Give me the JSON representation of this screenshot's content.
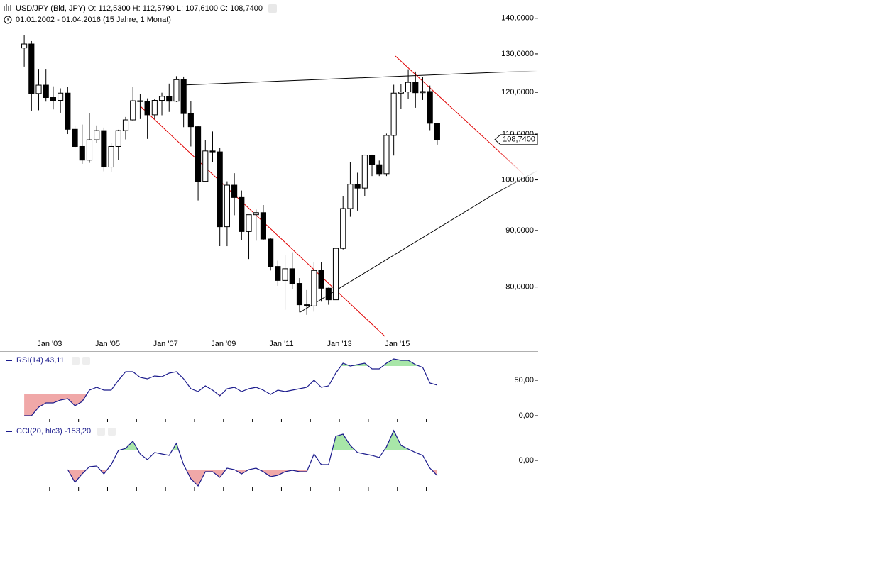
{
  "header": {
    "title": "USD/JPY (Bid, JPY)  O: 112,5300  H: 112,5790  L: 107,6100  C: 108,7400",
    "subtitle": "01.01.2002 - 01.04.2016 (15 Jahre, 1 Monat)"
  },
  "chart_data": [
    {
      "type": "candlestick",
      "log": true,
      "x": [
        "2002-01",
        "2002-04",
        "2002-07",
        "2002-10",
        "2003-01",
        "2003-04",
        "2003-07",
        "2003-10",
        "2004-01",
        "2004-04",
        "2004-07",
        "2004-10",
        "2005-01",
        "2005-04",
        "2005-07",
        "2005-10",
        "2006-01",
        "2006-04",
        "2006-07",
        "2006-10",
        "2007-01",
        "2007-04",
        "2007-07",
        "2007-10",
        "2008-01",
        "2008-04",
        "2008-07",
        "2008-10",
        "2009-01",
        "2009-04",
        "2009-07",
        "2009-10",
        "2010-01",
        "2010-04",
        "2010-07",
        "2010-10",
        "2011-01",
        "2011-04",
        "2011-07",
        "2011-10",
        "2012-01",
        "2012-04",
        "2012-07",
        "2012-10",
        "2013-01",
        "2013-04",
        "2013-07",
        "2013-10",
        "2014-01",
        "2014-04",
        "2014-07",
        "2014-10",
        "2015-01",
        "2015-04",
        "2015-07",
        "2015-10",
        "2016-01",
        "2016-04"
      ],
      "open": [
        131.6,
        132.7,
        119.7,
        121.8,
        118.7,
        118.0,
        119.8,
        111.1,
        107.2,
        104.2,
        108.7,
        110.8,
        102.7,
        107.2,
        110.8,
        113.3,
        117.9,
        117.7,
        114.5,
        118.0,
        119.0,
        117.8,
        123.2,
        114.8,
        111.7,
        99.7,
        106.2,
        106.0,
        90.7,
        98.9,
        96.4,
        89.8,
        93.0,
        93.4,
        88.4,
        83.5,
        81.1,
        83.1,
        80.6,
        77.1,
        76.9,
        82.8,
        79.8,
        77.9,
        86.7,
        94.2,
        99.1,
        98.3,
        105.3,
        103.2,
        101.3,
        109.7,
        119.8,
        120.1,
        122.5,
        119.9,
        120.2,
        112.53
      ],
      "high": [
        135.2,
        133.5,
        126.0,
        126.0,
        121.5,
        121.0,
        121.3,
        112.0,
        112.2,
        114.9,
        112.0,
        111.5,
        108.0,
        111.0,
        114.0,
        121.4,
        119.5,
        118.5,
        118.3,
        119.9,
        122.2,
        124.1,
        124.0,
        117.9,
        111.9,
        108.6,
        110.6,
        106.8,
        99.7,
        101.4,
        97.8,
        93.0,
        94.0,
        94.9,
        88.6,
        84.5,
        85.5,
        86.0,
        81.5,
        79.5,
        84.2,
        84.2,
        79.9,
        86.8,
        96.7,
        103.7,
        101.5,
        105.4,
        105.4,
        104.1,
        110.1,
        121.9,
        122.0,
        125.9,
        125.3,
        123.8,
        121.7,
        112.579
      ],
      "low": [
        126.6,
        115.5,
        115.6,
        117.7,
        115.8,
        115.0,
        110.0,
        106.8,
        103.4,
        103.6,
        108.0,
        101.8,
        101.7,
        104.2,
        108.8,
        113.0,
        113.5,
        108.9,
        113.5,
        114.4,
        115.2,
        117.6,
        111.6,
        107.2,
        95.8,
        100.0,
        103.8,
        87.1,
        87.1,
        92.9,
        88.2,
        84.8,
        88.1,
        88.2,
        82.8,
        80.2,
        76.3,
        79.6,
        75.9,
        75.5,
        76.0,
        77.6,
        77.1,
        77.9,
        86.5,
        92.6,
        93.8,
        96.6,
        100.8,
        100.8,
        100.8,
        105.2,
        115.9,
        118.4,
        116.2,
        118.1,
        110.9,
        107.61
      ],
      "close": [
        132.7,
        119.7,
        121.8,
        118.7,
        118.0,
        119.8,
        111.1,
        107.2,
        104.2,
        108.7,
        110.8,
        102.7,
        107.2,
        110.8,
        113.3,
        117.9,
        117.7,
        114.5,
        118.0,
        119.0,
        117.8,
        123.2,
        114.8,
        111.7,
        99.7,
        106.2,
        106.0,
        90.7,
        98.9,
        96.4,
        89.8,
        93.0,
        93.4,
        88.4,
        83.5,
        81.1,
        83.1,
        80.6,
        77.1,
        76.9,
        82.8,
        79.8,
        77.9,
        86.7,
        94.2,
        99.1,
        98.3,
        105.3,
        103.2,
        101.3,
        109.7,
        119.8,
        120.1,
        122.5,
        119.9,
        120.2,
        112.5,
        108.74
      ],
      "last_value_label": "108,7400",
      "up_color": "#ffffff",
      "down_color": "#000000",
      "xlim": [
        "2002-01",
        "2016-07"
      ],
      "ylim": [
        72.1,
        143.3
      ],
      "xticks": [
        {
          "value": "2003-01",
          "label": "Jan '03"
        },
        {
          "value": "2005-01",
          "label": "Jan '05"
        },
        {
          "value": "2007-01",
          "label": "Jan '07"
        },
        {
          "value": "2009-01",
          "label": "Jan '09"
        },
        {
          "value": "2011-01",
          "label": "Jan '11"
        },
        {
          "value": "2013-01",
          "label": "Jan '13"
        },
        {
          "value": "2015-01",
          "label": "Jan '15"
        }
      ],
      "yticks": [
        {
          "value": 80,
          "label": "80,0000"
        },
        {
          "value": 90,
          "label": "90,0000"
        },
        {
          "value": 100,
          "label": "100,0000"
        },
        {
          "value": 110,
          "label": "110,0000"
        },
        {
          "value": 120,
          "label": "120,0000"
        },
        {
          "value": 130,
          "label": "130,0000"
        },
        {
          "value": 140,
          "label": "140,0000"
        }
      ]
    },
    {
      "type": "line",
      "title": "RSI(14)  43,11",
      "color": "#1a1a8c",
      "values": [
        0,
        0,
        12,
        18,
        18,
        22,
        24,
        14,
        20,
        36,
        40,
        36,
        36,
        50,
        62,
        62,
        54,
        52,
        56,
        55,
        60,
        62,
        52,
        38,
        34,
        42,
        36,
        28,
        38,
        40,
        34,
        38,
        40,
        36,
        30,
        36,
        34,
        36,
        38,
        40,
        50,
        40,
        42,
        60,
        74,
        70,
        72,
        74,
        66,
        66,
        74,
        80,
        78,
        78,
        72,
        68,
        46,
        43.11
      ],
      "bands": {
        "upper": 70,
        "lower": 30,
        "upper_color": "#a8e6a8",
        "lower_color": "#f0a8a8"
      },
      "xlim": [
        "2002-01",
        "2016-07"
      ],
      "xticks": [
        "2003-01",
        "2004-01",
        "2005-01",
        "2006-01",
        "2007-01",
        "2008-01",
        "2009-01",
        "2010-01",
        "2011-01",
        "2012-01",
        "2013-01",
        "2014-01",
        "2015-01",
        "2016-01"
      ],
      "ylim": [
        -9,
        89
      ],
      "yticks": [
        {
          "value": 0,
          "label": "0,00"
        },
        {
          "value": 50,
          "label": "50,00"
        }
      ]
    },
    {
      "type": "line",
      "title": "CCI(20, hlc3)  -153,20",
      "color": "#1a1a8c",
      "values": [
        null,
        null,
        null,
        null,
        null,
        null,
        -93,
        -221,
        -136,
        -64,
        -57,
        -136,
        -43,
        100,
        121,
        193,
        64,
        7,
        79,
        64,
        50,
        171,
        -43,
        -186,
        -257,
        -114,
        -114,
        -171,
        -79,
        -93,
        -136,
        -93,
        -79,
        -114,
        -164,
        -150,
        -114,
        -100,
        -114,
        -114,
        64,
        -43,
        -43,
        243,
        264,
        150,
        79,
        64,
        50,
        29,
        136,
        300,
        150,
        114,
        79,
        50,
        -79,
        -153.2
      ],
      "bands": {
        "upper": 100,
        "lower": -100,
        "upper_color": "#a8e6a8",
        "lower_color": "#f0a8a8"
      },
      "xlim": [
        "2002-01",
        "2016-07"
      ],
      "xticks": [
        "2003-01",
        "2004-01",
        "2005-01",
        "2006-01",
        "2007-01",
        "2008-01",
        "2009-01",
        "2010-01",
        "2011-01",
        "2012-01",
        "2013-01",
        "2014-01",
        "2015-01",
        "2016-01"
      ],
      "ylim": [
        -307,
        371
      ],
      "yticks": [
        {
          "value": 0,
          "label": "0,00"
        }
      ]
    }
  ]
}
